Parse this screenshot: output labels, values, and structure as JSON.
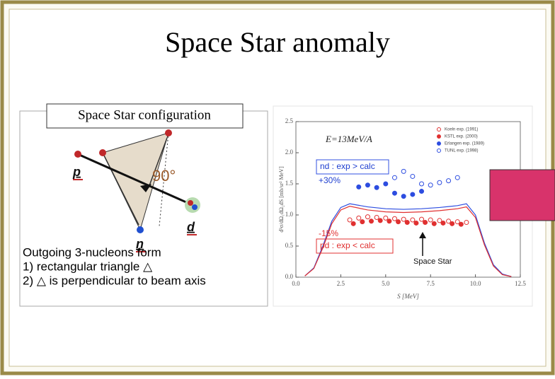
{
  "title": "Space Star anomaly",
  "diagram": {
    "label": "Space Star configuration",
    "particles": [
      "p",
      "n",
      "d"
    ],
    "angle": "90°",
    "caption": [
      "Outgoing 3-nucleons form",
      "1) rectangular triangle △",
      "2) △ is perpendicular to beam axis"
    ]
  },
  "chart_data": {
    "type": "scatter",
    "energy": "E=13MeV/A",
    "xlabel": "S [MeV]",
    "ylabel": "d³σ/dΩ₁dΩ₂dS [mb/sr² MeV]",
    "xlim": [
      0,
      12.5
    ],
    "ylim": [
      0,
      2.5
    ],
    "xticks": [
      {
        "value": 0,
        "label": "0.0"
      },
      2.5,
      {
        "value": 5,
        "label": "5.0"
      },
      7.5,
      {
        "value": 10,
        "label": "10.0"
      },
      12.5
    ],
    "yticks": [
      {
        "value": 0,
        "label": "0.0"
      },
      0.5,
      {
        "value": 1,
        "label": "1.0"
      },
      1.5,
      {
        "value": 2,
        "label": "2.0"
      },
      2.5
    ],
    "series": [
      {
        "name": "Koeln exp. (1991)",
        "color": "#e03030",
        "marker": "open",
        "x": [
          3,
          3.5,
          4,
          4.5,
          5,
          5.5,
          6,
          6.5,
          7,
          7.5,
          8,
          8.5,
          9,
          9.5
        ],
        "values": [
          0.92,
          0.95,
          0.97,
          0.96,
          0.95,
          0.94,
          0.93,
          0.92,
          0.93,
          0.92,
          0.91,
          0.9,
          0.89,
          0.88
        ]
      },
      {
        "name": "KSTL exp. (2000)",
        "color": "#e03030",
        "marker": "filled",
        "x": [
          3.2,
          3.7,
          4.2,
          4.7,
          5.2,
          5.7,
          6.2,
          6.7,
          7.2,
          7.7,
          8.2,
          8.7,
          9.2
        ],
        "values": [
          0.86,
          0.89,
          0.9,
          0.91,
          0.9,
          0.89,
          0.88,
          0.87,
          0.88,
          0.86,
          0.87,
          0.86,
          0.85
        ]
      },
      {
        "name": "Erlangen exp. (1989)",
        "color": "#2d4de0",
        "marker": "filled",
        "x": [
          3.5,
          4,
          4.5,
          5,
          5.5,
          6,
          6.5,
          7
        ],
        "values": [
          1.45,
          1.48,
          1.44,
          1.5,
          1.35,
          1.3,
          1.33,
          1.38
        ]
      },
      {
        "name": "TUNL exp. (1998)",
        "color": "#2d4de0",
        "marker": "open",
        "x": [
          5.5,
          6,
          6.5,
          7,
          7.5,
          8,
          8.5,
          9
        ],
        "values": [
          1.6,
          1.7,
          1.62,
          1.5,
          1.48,
          1.52,
          1.55,
          1.6
        ]
      }
    ],
    "curves": [
      {
        "color": "#2d4de0",
        "x": [
          0.5,
          1,
          1.5,
          2,
          2.5,
          3,
          4,
          5,
          6,
          7,
          8,
          9,
          9.5,
          10,
          10.5,
          11,
          11.5,
          12
        ],
        "values": [
          0.02,
          0.15,
          0.5,
          0.9,
          1.12,
          1.18,
          1.13,
          1.1,
          1.09,
          1.1,
          1.12,
          1.15,
          1.18,
          1.0,
          0.55,
          0.2,
          0.05,
          0.01
        ]
      },
      {
        "color": "#e03030",
        "x": [
          0.5,
          1,
          1.5,
          2,
          2.5,
          3,
          4,
          5,
          6,
          7,
          8,
          9,
          9.5,
          10,
          10.5,
          11,
          11.5,
          12
        ],
        "values": [
          0.02,
          0.14,
          0.47,
          0.86,
          1.08,
          1.14,
          1.08,
          1.05,
          1.04,
          1.05,
          1.07,
          1.1,
          1.13,
          0.96,
          0.52,
          0.18,
          0.04,
          0.01
        ]
      }
    ],
    "annotations": [
      "nd : exp > calc",
      "+30%",
      "-15%",
      "pd : exp < calc",
      "Space Star"
    ]
  }
}
